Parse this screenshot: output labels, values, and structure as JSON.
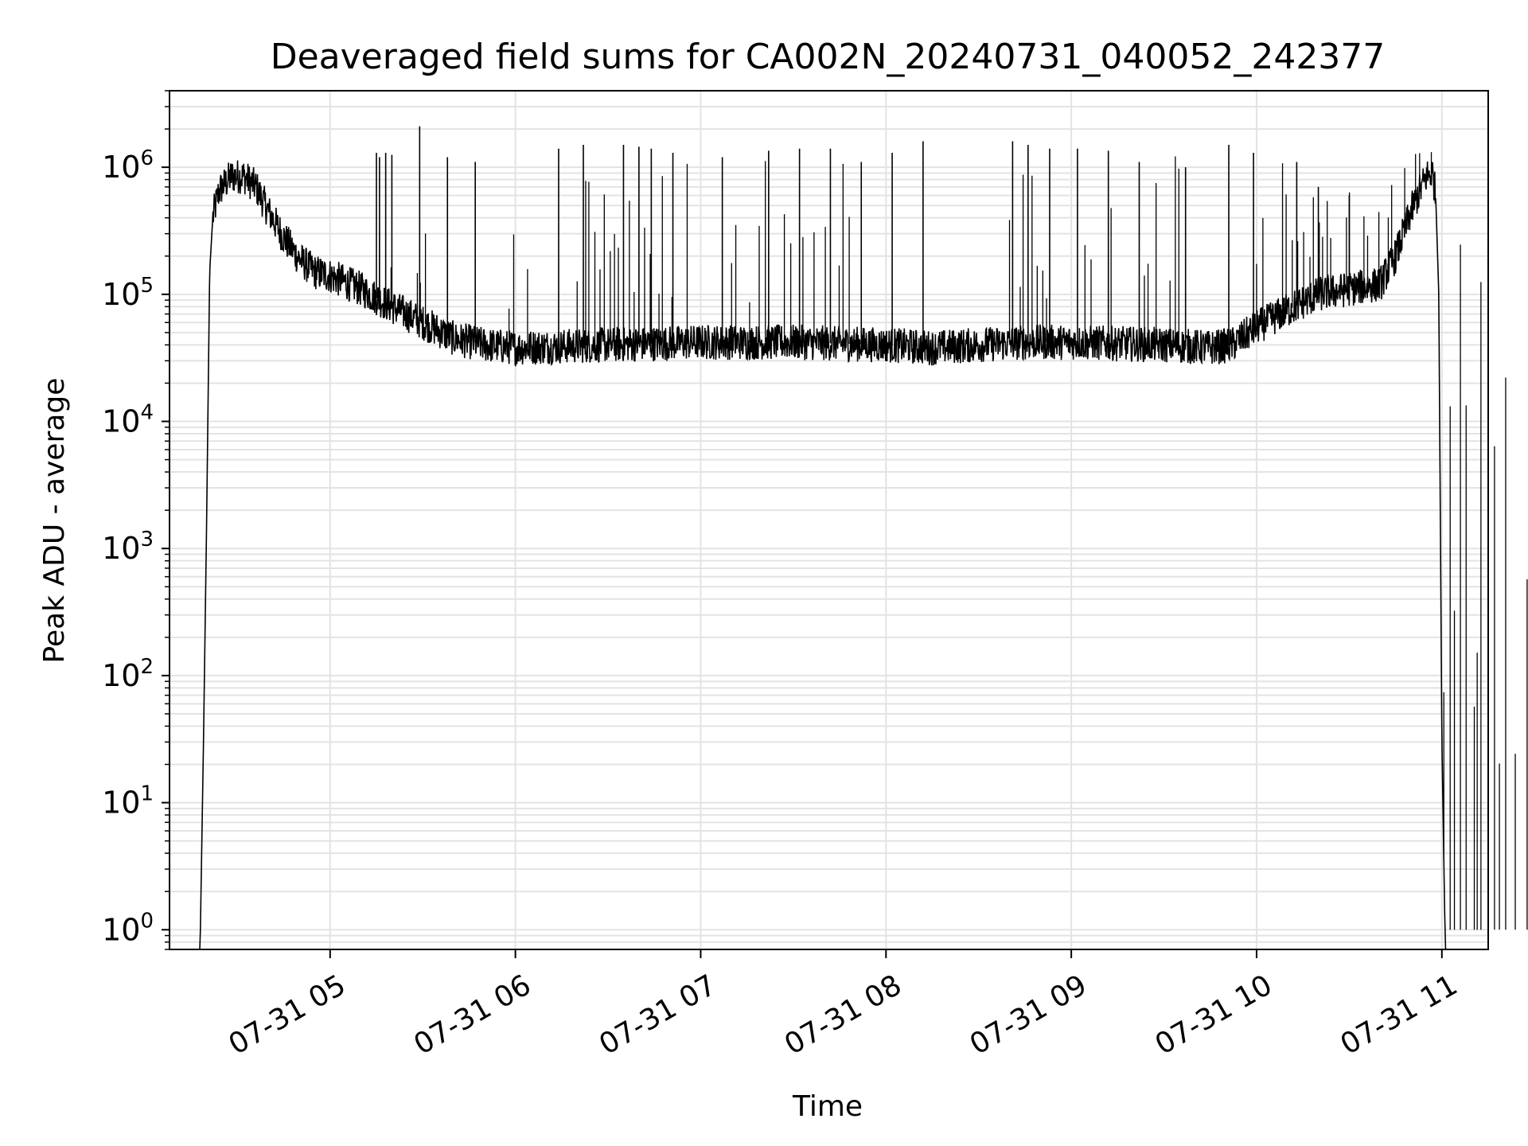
{
  "chart_data": {
    "type": "line",
    "title": "Deaveraged field sums for CA002N_20240731_040052_242377",
    "xlabel": "Time",
    "ylabel": "Peak ADU - average",
    "yscale": "log",
    "grid": true,
    "xlim": [
      "2024-07-31 04:08",
      "2024-07-31 11:15"
    ],
    "ylim": [
      0.7,
      4000000
    ],
    "x_ticks": [
      {
        "value": "2024-07-31 05:00",
        "label": "07-31 05"
      },
      {
        "value": "2024-07-31 06:00",
        "label": "07-31 06"
      },
      {
        "value": "2024-07-31 07:00",
        "label": "07-31 07"
      },
      {
        "value": "2024-07-31 08:00",
        "label": "07-31 08"
      },
      {
        "value": "2024-07-31 09:00",
        "label": "07-31 09"
      },
      {
        "value": "2024-07-31 10:00",
        "label": "07-31 10"
      },
      {
        "value": "2024-07-31 11:00",
        "label": "07-31 11"
      }
    ],
    "y_ticks": [
      {
        "value": 1,
        "base": "10",
        "exp": "0"
      },
      {
        "value": 10,
        "base": "10",
        "exp": "1"
      },
      {
        "value": 100,
        "base": "10",
        "exp": "2"
      },
      {
        "value": 1000,
        "base": "10",
        "exp": "3"
      },
      {
        "value": 10000,
        "base": "10",
        "exp": "4"
      },
      {
        "value": 100000,
        "base": "10",
        "exp": "5"
      },
      {
        "value": 1000000,
        "base": "10",
        "exp": "6"
      }
    ],
    "series": [
      {
        "color": "#000000",
        "baseline": {
          "x": [
            "2024-07-31 04:18",
            "2024-07-31 04:19",
            "2024-07-31 04:20",
            "2024-07-31 04:21",
            "2024-07-31 04:22",
            "2024-07-31 04:24",
            "2024-07-31 04:28",
            "2024-07-31 04:32",
            "2024-07-31 04:36",
            "2024-07-31 04:40",
            "2024-07-31 04:45",
            "2024-07-31 04:50",
            "2024-07-31 04:55",
            "2024-07-31 05:00",
            "2024-07-31 05:10",
            "2024-07-31 05:20",
            "2024-07-31 05:30",
            "2024-07-31 05:40",
            "2024-07-31 05:50",
            "2024-07-31 06:00",
            "2024-07-31 06:30",
            "2024-07-31 07:00",
            "2024-07-31 07:30",
            "2024-07-31 08:00",
            "2024-07-31 08:15",
            "2024-07-31 08:30",
            "2024-07-31 08:45",
            "2024-07-31 09:00",
            "2024-07-31 09:30",
            "2024-07-31 09:45",
            "2024-07-31 09:52",
            "2024-07-31 10:00",
            "2024-07-31 10:10",
            "2024-07-31 10:20",
            "2024-07-31 10:30",
            "2024-07-31 10:40",
            "2024-07-31 10:45",
            "2024-07-31 10:50",
            "2024-07-31 10:55",
            "2024-07-31 10:57",
            "2024-07-31 10:58",
            "2024-07-31 10:59",
            "2024-07-31 11:00",
            "2024-07-31 11:01"
          ],
          "y": [
            1,
            30,
            1500,
            150000,
            400000,
            650000,
            850000,
            850000,
            700000,
            450000,
            280000,
            190000,
            150000,
            140000,
            110000,
            80000,
            60000,
            45000,
            40000,
            38000,
            40000,
            42000,
            42000,
            40000,
            38000,
            40000,
            42000,
            42000,
            40000,
            38000,
            40000,
            55000,
            75000,
            100000,
            110000,
            120000,
            200000,
            450000,
            850000,
            900000,
            600000,
            100000,
            30,
            1
          ]
        },
        "spikes": [
          {
            "x": "2024-07-31 05:15",
            "y": 1300000
          },
          {
            "x": "2024-07-31 05:16",
            "y": 1200000
          },
          {
            "x": "2024-07-31 05:18",
            "y": 1300000
          },
          {
            "x": "2024-07-31 05:20",
            "y": 1250000
          },
          {
            "x": "2024-07-31 05:29",
            "y": 2100000
          },
          {
            "x": "2024-07-31 05:38",
            "y": 1200000
          },
          {
            "x": "2024-07-31 05:47",
            "y": 1100000
          },
          {
            "x": "2024-07-31 06:14",
            "y": 1400000
          },
          {
            "x": "2024-07-31 06:22",
            "y": 1500000
          },
          {
            "x": "2024-07-31 06:35",
            "y": 1500000
          },
          {
            "x": "2024-07-31 06:40",
            "y": 1450000
          },
          {
            "x": "2024-07-31 06:44",
            "y": 1400000
          },
          {
            "x": "2024-07-31 06:51",
            "y": 1300000
          },
          {
            "x": "2024-07-31 07:07",
            "y": 1200000
          },
          {
            "x": "2024-07-31 07:22",
            "y": 1350000
          },
          {
            "x": "2024-07-31 07:32",
            "y": 1400000
          },
          {
            "x": "2024-07-31 07:42",
            "y": 1400000
          },
          {
            "x": "2024-07-31 07:52",
            "y": 1100000
          },
          {
            "x": "2024-07-31 08:02",
            "y": 1300000
          },
          {
            "x": "2024-07-31 08:12",
            "y": 1600000
          },
          {
            "x": "2024-07-31 08:41",
            "y": 1600000
          },
          {
            "x": "2024-07-31 08:46",
            "y": 1500000
          },
          {
            "x": "2024-07-31 08:53",
            "y": 1400000
          },
          {
            "x": "2024-07-31 09:02",
            "y": 1400000
          },
          {
            "x": "2024-07-31 09:12",
            "y": 1350000
          },
          {
            "x": "2024-07-31 09:22",
            "y": 1100000
          },
          {
            "x": "2024-07-31 09:37",
            "y": 1000000
          },
          {
            "x": "2024-07-31 09:51",
            "y": 1500000
          },
          {
            "x": "2024-07-31 09:59",
            "y": 1300000
          },
          {
            "x": "2024-07-31 10:13",
            "y": 1100000
          },
          {
            "x": "2024-07-31 10:20",
            "y": 700000
          },
          {
            "x": "2024-07-31 10:30",
            "y": 600000
          }
        ]
      }
    ]
  }
}
